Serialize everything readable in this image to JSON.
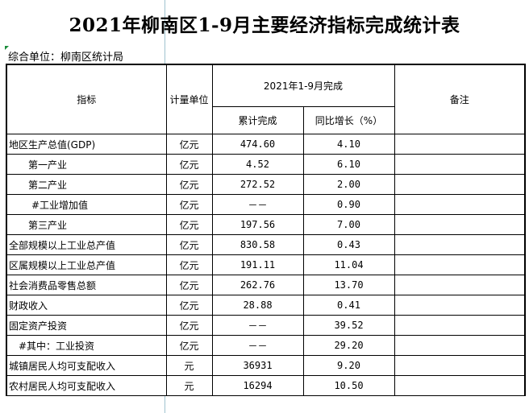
{
  "title": "2021年柳南区1-9月主要经济指标完成统计表",
  "unit_line": "综合单位：柳南区统计局",
  "headers": {
    "indicator": "指标",
    "unit": "计量单位",
    "period": "2021年1-9月完成",
    "cumulative": "累计完成",
    "growth": "同比增长（%）",
    "remarks": "备注"
  },
  "rows": [
    {
      "name": "地区生产总值(GDP)",
      "unit": "亿元",
      "value": "474.60",
      "growth": "4.10",
      "indent": 0
    },
    {
      "name": "第一产业",
      "unit": "亿元",
      "value": "4.52",
      "growth": "6.10",
      "indent": 1
    },
    {
      "name": "第二产业",
      "unit": "亿元",
      "value": "272.52",
      "growth": "2.00",
      "indent": 1
    },
    {
      "name": "#工业增加值",
      "unit": "亿元",
      "value": "－－",
      "growth": "0.90",
      "indent": 2
    },
    {
      "name": "第三产业",
      "unit": "亿元",
      "value": "197.56",
      "growth": "7.00",
      "indent": 1
    },
    {
      "name": "全部规模以上工业总产值",
      "unit": "亿元",
      "value": "830.58",
      "growth": "0.43",
      "indent": 0
    },
    {
      "name": "区属规模以上工业总产值",
      "unit": "亿元",
      "value": "191.11",
      "growth": "11.04",
      "indent": 0
    },
    {
      "name": "社会消费品零售总额",
      "unit": "亿元",
      "value": "262.76",
      "growth": "13.70",
      "indent": 0
    },
    {
      "name": "财政收入",
      "unit": "亿元",
      "value": "28.88",
      "growth": "0.41",
      "indent": 0
    },
    {
      "name": "固定资产投资",
      "unit": "亿元",
      "value": "－－",
      "growth": "39.52",
      "indent": 0
    },
    {
      "name": "#其中：工业投资",
      "unit": "亿元",
      "value": "－－",
      "growth": "29.20",
      "indent": 3
    },
    {
      "name": "城镇居民人均可支配收入",
      "unit": "元",
      "value": "36931",
      "growth": "9.20",
      "indent": 0
    },
    {
      "name": "农村居民人均可支配收入",
      "unit": "元",
      "value": "16294",
      "growth": "10.50",
      "indent": 0
    }
  ]
}
